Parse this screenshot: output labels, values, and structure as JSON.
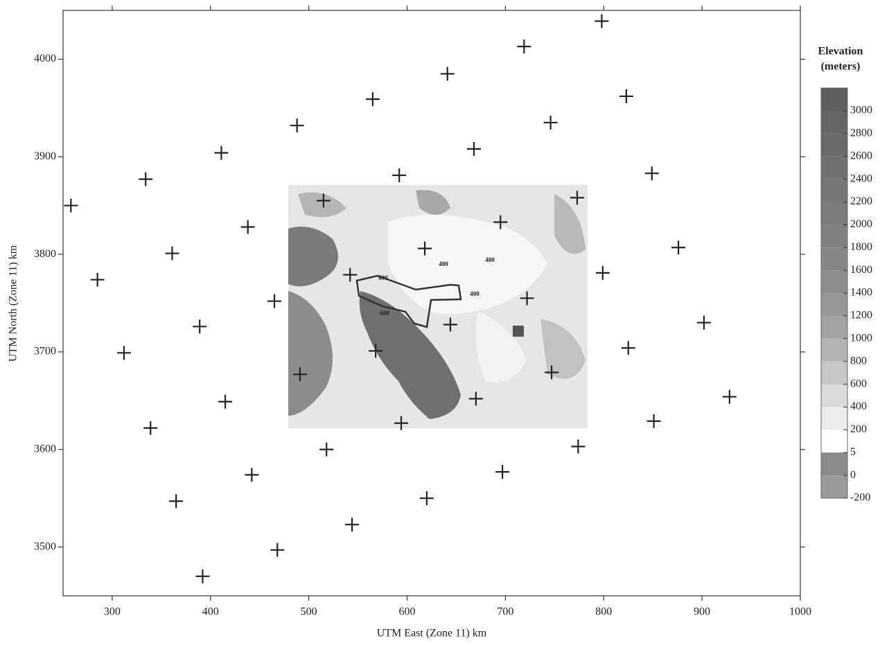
{
  "chart_data": {
    "type": "scatter",
    "x_label": "UTM East (Zone 11) km",
    "y_label": "UTM North (Zone 11) km",
    "xlim": [
      250,
      1000
    ],
    "xticks": [
      300,
      400,
      500,
      600,
      700,
      800,
      900,
      1000
    ],
    "ylim": [
      3450,
      4050
    ],
    "yticks": [
      3500,
      3600,
      3700,
      3800,
      3900,
      4000
    ],
    "marker": "plus",
    "color": "#222",
    "x": [
      798,
      719,
      641,
      565,
      488,
      411,
      334,
      258,
      823,
      746,
      668,
      592,
      515,
      438,
      361,
      285,
      849,
      773,
      695,
      618,
      542,
      465,
      389,
      312,
      876,
      799,
      722,
      644,
      568,
      491,
      415,
      339,
      902,
      825,
      747,
      670,
      594,
      518,
      442,
      365,
      928,
      851,
      774,
      697,
      620,
      544,
      468,
      392
    ],
    "y": [
      4039,
      4013,
      3985,
      3959,
      3932,
      3904,
      3877,
      3850,
      3962,
      3935,
      3908,
      3881,
      3855,
      3828,
      3801,
      3774,
      3883,
      3858,
      3833,
      3806,
      3779,
      3752,
      3726,
      3699,
      3807,
      3781,
      3755,
      3728,
      3701,
      3677,
      3649,
      3622,
      3730,
      3704,
      3679,
      3652,
      3627,
      3600,
      3574,
      3547,
      3654,
      3629,
      3603,
      3577,
      3550,
      3523,
      3497,
      3470
    ],
    "colorbar": {
      "title": [
        "Elevation",
        "(meters)"
      ],
      "levels": [
        3000,
        2800,
        2600,
        2400,
        2200,
        2000,
        1800,
        1600,
        1400,
        1200,
        1000,
        800,
        600,
        400,
        200,
        5,
        0,
        -200
      ],
      "colors": [
        "#5e5e5e",
        "#656565",
        "#6b6b6b",
        "#717171",
        "#767676",
        "#7b7b7b",
        "#808080",
        "#868686",
        "#8d8d8d",
        "#979797",
        "#a3a3a3",
        "#b3b3b3",
        "#c6c6c6",
        "#dadada",
        "#ececec",
        "#ffffff",
        "#8a8a8a",
        "#9a9a9a"
      ]
    },
    "contour_labels": [
      "600",
      "600",
      "400",
      "400",
      "400"
    ]
  }
}
